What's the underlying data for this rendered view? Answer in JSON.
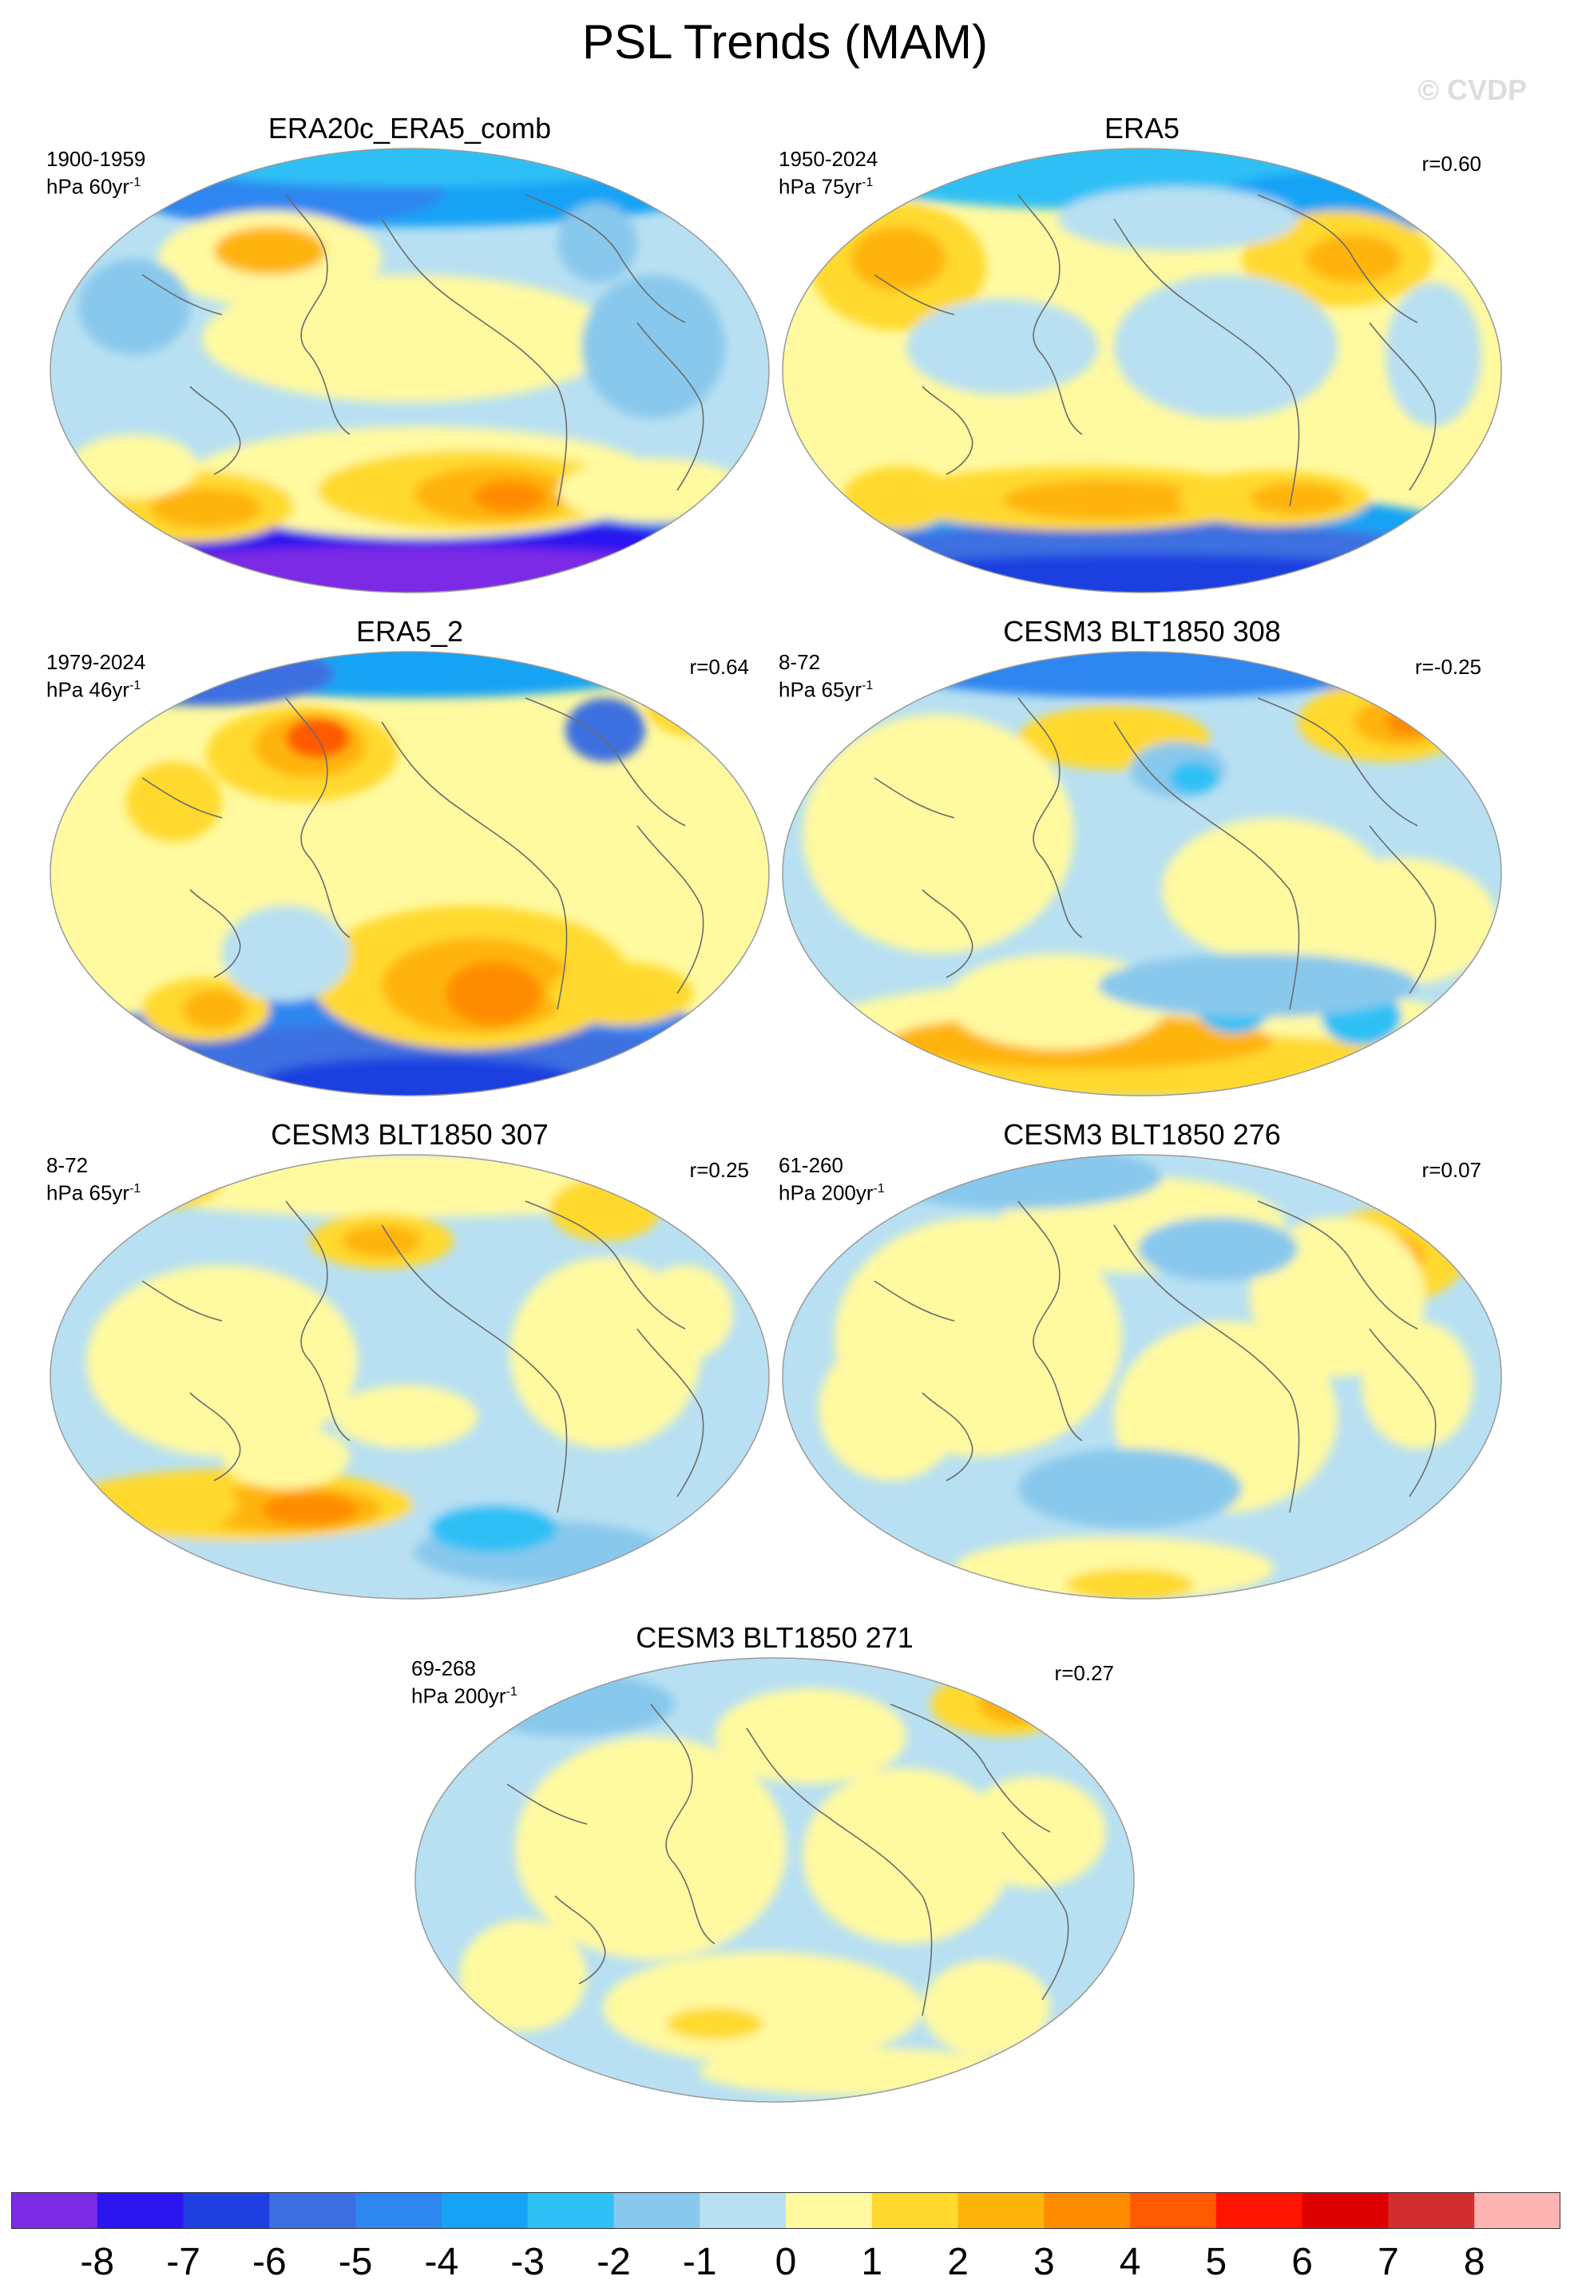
{
  "title": "PSL Trends (MAM)",
  "watermark": "© CVDP",
  "panels": [
    {
      "title": "ERA20c_ERA5_comb",
      "period": "1900-1959",
      "unit": "hPa 60yr",
      "r": "",
      "scheme": "era20c"
    },
    {
      "title": "ERA5",
      "period": "1950-2024",
      "unit": "hPa 75yr",
      "r": "r=0.60",
      "scheme": "era5"
    },
    {
      "title": "ERA5_2",
      "period": "1979-2024",
      "unit": "hPa 46yr",
      "r": "r=0.64",
      "scheme": "era52"
    },
    {
      "title": "CESM3 BLT1850 308",
      "period": "8-72",
      "unit": "hPa 65yr",
      "r": "r=-0.25",
      "scheme": "c308"
    },
    {
      "title": "CESM3 BLT1850 307",
      "period": "8-72",
      "unit": "hPa 65yr",
      "r": "r=0.25",
      "scheme": "c307"
    },
    {
      "title": "CESM3 BLT1850 276",
      "period": "61-260",
      "unit": "hPa 200yr",
      "r": "r=0.07",
      "scheme": "c276"
    },
    {
      "title": "CESM3 BLT1850 271",
      "period": "69-268",
      "unit": "hPa 200yr",
      "r": "r=0.27",
      "scheme": "c271"
    }
  ],
  "unit_exponent": "-1",
  "colorbar": {
    "labels": [
      "-8",
      "-7",
      "-6",
      "-5",
      "-4",
      "-3",
      "-2",
      "-1",
      "0",
      "1",
      "2",
      "3",
      "4",
      "5",
      "6",
      "7",
      "8"
    ],
    "colors": [
      "#7b2be6",
      "#2b16f0",
      "#1f3fe0",
      "#3d6fe0",
      "#2e86f0",
      "#14a3f5",
      "#2fc0f5",
      "#88c8ec",
      "#b8e0f2",
      "#fff9a0",
      "#ffd92e",
      "#ffb40a",
      "#ff8c00",
      "#ff5a00",
      "#ff1400",
      "#dc0000",
      "#d22e2e",
      "#ffb4b4"
    ]
  }
}
